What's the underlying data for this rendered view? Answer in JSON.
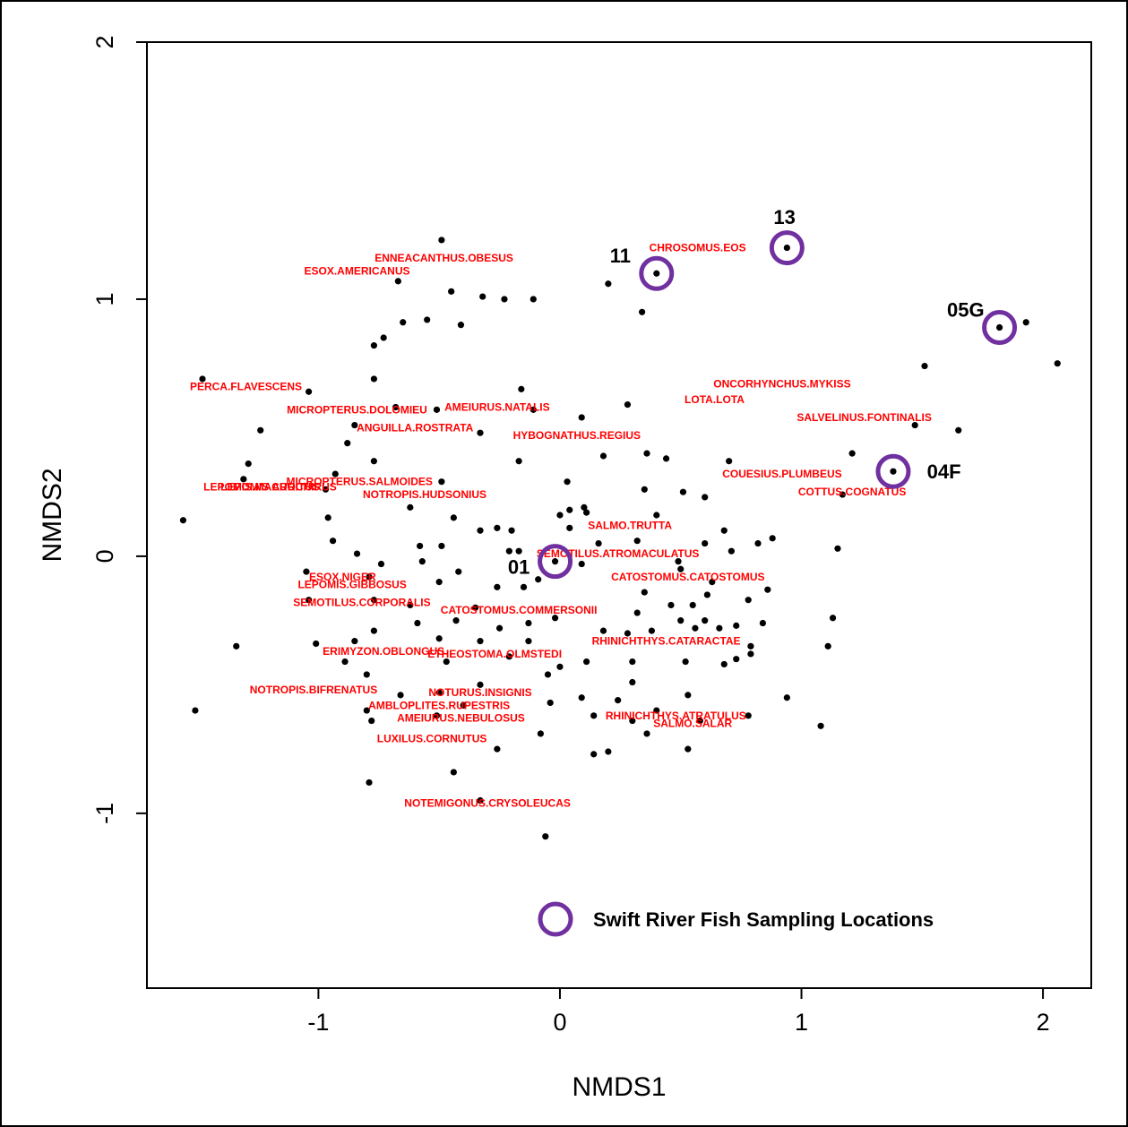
{
  "chart_data": {
    "type": "scatter",
    "xlabel": "NMDS1",
    "ylabel": "NMDS2",
    "xlim": [
      -1.71,
      2.2
    ],
    "ylim": [
      -1.68,
      2.0
    ],
    "x_ticks": [
      -1,
      0,
      1,
      2
    ],
    "y_ticks": [
      -1,
      0,
      1,
      2
    ],
    "x_tick_labels": [
      "-1",
      "0",
      "1",
      "2"
    ],
    "y_tick_labels": [
      "-1",
      "0",
      "1",
      "2"
    ],
    "grid": false,
    "colors": {
      "points": "#000000",
      "species_labels": "#ff0000",
      "site_circles": "#7030a0"
    },
    "points": [
      [
        -0.49,
        1.23
      ],
      [
        -0.67,
        1.07
      ],
      [
        -0.45,
        1.03
      ],
      [
        -0.32,
        1.01
      ],
      [
        -0.23,
        1.0
      ],
      [
        -0.11,
        1.0
      ],
      [
        -0.55,
        0.92
      ],
      [
        -0.65,
        0.91
      ],
      [
        -0.41,
        0.9
      ],
      [
        -0.73,
        0.85
      ],
      [
        -0.77,
        0.82
      ],
      [
        -1.48,
        0.69
      ],
      [
        -0.77,
        0.69
      ],
      [
        -1.04,
        0.64
      ],
      [
        -0.16,
        0.65
      ],
      [
        -0.68,
        0.58
      ],
      [
        -0.51,
        0.57
      ],
      [
        -0.11,
        0.57
      ],
      [
        0.09,
        0.54
      ],
      [
        0.28,
        0.59
      ],
      [
        -1.24,
        0.49
      ],
      [
        -0.85,
        0.51
      ],
      [
        -0.33,
        0.48
      ],
      [
        -0.88,
        0.44
      ],
      [
        0.18,
        0.39
      ],
      [
        0.36,
        0.4
      ],
      [
        0.44,
        0.38
      ],
      [
        -1.29,
        0.36
      ],
      [
        -0.77,
        0.37
      ],
      [
        -0.17,
        0.37
      ],
      [
        -0.93,
        0.32
      ],
      [
        -1.31,
        0.3
      ],
      [
        0.03,
        0.29
      ],
      [
        -0.49,
        0.29
      ],
      [
        0.35,
        0.26
      ],
      [
        0.51,
        0.25
      ],
      [
        0.6,
        0.23
      ],
      [
        0.7,
        0.37
      ],
      [
        0.04,
        0.18
      ],
      [
        0.1,
        0.19
      ],
      [
        0.4,
        0.16
      ],
      [
        -0.97,
        0.26
      ],
      [
        -0.62,
        0.19
      ],
      [
        0.11,
        0.17
      ],
      [
        -1.56,
        0.14
      ],
      [
        -0.96,
        0.15
      ],
      [
        -0.44,
        0.15
      ],
      [
        0.0,
        0.16
      ],
      [
        0.04,
        0.11
      ],
      [
        -0.2,
        0.1
      ],
      [
        -0.33,
        0.1
      ],
      [
        -0.26,
        0.11
      ],
      [
        0.68,
        0.1
      ],
      [
        0.16,
        0.05
      ],
      [
        0.32,
        0.06
      ],
      [
        0.6,
        0.05
      ],
      [
        -0.94,
        0.06
      ],
      [
        -0.58,
        0.04
      ],
      [
        -0.49,
        0.04
      ],
      [
        -0.21,
        0.02
      ],
      [
        -0.17,
        0.02
      ],
      [
        0.82,
        0.05
      ],
      [
        0.88,
        0.07
      ],
      [
        0.71,
        0.02
      ],
      [
        1.15,
        0.03
      ],
      [
        -0.84,
        0.01
      ],
      [
        -0.57,
        -0.02
      ],
      [
        -0.74,
        -0.03
      ],
      [
        -0.42,
        -0.06
      ],
      [
        0.09,
        -0.03
      ],
      [
        0.49,
        -0.02
      ],
      [
        0.5,
        -0.05
      ],
      [
        -1.05,
        -0.06
      ],
      [
        -0.79,
        -0.08
      ],
      [
        -0.5,
        -0.1
      ],
      [
        -0.09,
        -0.09
      ],
      [
        0.63,
        -0.1
      ],
      [
        -0.26,
        -0.12
      ],
      [
        -0.15,
        -0.12
      ],
      [
        0.35,
        -0.14
      ],
      [
        0.61,
        -0.15
      ],
      [
        0.86,
        -0.13
      ],
      [
        -1.04,
        -0.17
      ],
      [
        -0.77,
        -0.17
      ],
      [
        -0.62,
        -0.19
      ],
      [
        -0.35,
        -0.2
      ],
      [
        0.46,
        -0.19
      ],
      [
        0.55,
        -0.19
      ],
      [
        0.78,
        -0.17
      ],
      [
        -0.43,
        -0.25
      ],
      [
        -0.13,
        -0.26
      ],
      [
        -0.02,
        -0.24
      ],
      [
        0.32,
        -0.22
      ],
      [
        0.5,
        -0.25
      ],
      [
        0.6,
        -0.25
      ],
      [
        0.73,
        -0.27
      ],
      [
        0.84,
        -0.26
      ],
      [
        1.13,
        -0.24
      ],
      [
        -0.59,
        -0.26
      ],
      [
        -0.25,
        -0.28
      ],
      [
        0.18,
        -0.29
      ],
      [
        0.28,
        -0.3
      ],
      [
        0.38,
        -0.29
      ],
      [
        0.56,
        -0.28
      ],
      [
        0.66,
        -0.28
      ],
      [
        -1.34,
        -0.35
      ],
      [
        -1.01,
        -0.34
      ],
      [
        -0.85,
        -0.33
      ],
      [
        -0.77,
        -0.29
      ],
      [
        -0.5,
        -0.32
      ],
      [
        -0.33,
        -0.33
      ],
      [
        -0.13,
        -0.33
      ],
      [
        0.73,
        -0.4
      ],
      [
        0.79,
        -0.35
      ],
      [
        1.11,
        -0.35
      ],
      [
        -0.89,
        -0.41
      ],
      [
        -0.21,
        -0.39
      ],
      [
        0.11,
        -0.41
      ],
      [
        -0.47,
        -0.41
      ],
      [
        -0.05,
        -0.46
      ],
      [
        0.0,
        -0.43
      ],
      [
        0.3,
        -0.41
      ],
      [
        0.52,
        -0.41
      ],
      [
        0.68,
        -0.42
      ],
      [
        0.79,
        -0.38
      ],
      [
        -0.8,
        -0.46
      ],
      [
        -0.33,
        -0.5
      ],
      [
        -0.5,
        -0.53
      ],
      [
        0.3,
        -0.49
      ],
      [
        -1.51,
        -0.6
      ],
      [
        -0.8,
        -0.6
      ],
      [
        -0.78,
        -0.64
      ],
      [
        -0.51,
        -0.62
      ],
      [
        -0.4,
        -0.58
      ],
      [
        -0.04,
        -0.57
      ],
      [
        0.09,
        -0.55
      ],
      [
        0.24,
        -0.56
      ],
      [
        0.53,
        -0.54
      ],
      [
        0.94,
        -0.55
      ],
      [
        -0.66,
        -0.54
      ],
      [
        0.14,
        -0.62
      ],
      [
        0.4,
        -0.6
      ],
      [
        0.3,
        -0.64
      ],
      [
        0.58,
        -0.64
      ],
      [
        0.78,
        -0.62
      ],
      [
        1.08,
        -0.66
      ],
      [
        -0.08,
        -0.69
      ],
      [
        0.36,
        -0.69
      ],
      [
        -0.26,
        -0.75
      ],
      [
        0.14,
        -0.77
      ],
      [
        0.2,
        -0.76
      ],
      [
        0.53,
        -0.75
      ],
      [
        -0.44,
        -0.84
      ],
      [
        -0.79,
        -0.88
      ],
      [
        -0.33,
        -0.95
      ],
      [
        -0.06,
        -1.09
      ],
      [
        0.2,
        1.06
      ],
      [
        0.34,
        0.95
      ],
      [
        0.4,
        1.1
      ],
      [
        0.94,
        1.2
      ],
      [
        1.82,
        0.89
      ],
      [
        1.93,
        0.91
      ],
      [
        2.06,
        0.75
      ],
      [
        1.51,
        0.74
      ],
      [
        1.47,
        0.51
      ],
      [
        1.65,
        0.49
      ],
      [
        1.21,
        0.4
      ],
      [
        1.38,
        0.33
      ],
      [
        1.17,
        0.24
      ],
      [
        -0.02,
        -0.02
      ]
    ],
    "species_labels": [
      {
        "text": "ENNEACANTHUS.OBESUS",
        "x": -0.48,
        "y": 1.16
      },
      {
        "text": "ESOX.AMERICANUS",
        "x": -0.84,
        "y": 1.11
      },
      {
        "text": "CHROSOMUS.EOS",
        "x": 0.57,
        "y": 1.2
      },
      {
        "text": "PERCA.FLAVESCENS",
        "x": -1.3,
        "y": 0.66
      },
      {
        "text": "ONCORHYNCHUS.MYKISS",
        "x": 0.92,
        "y": 0.67
      },
      {
        "text": "LOTA.LOTA",
        "x": 0.64,
        "y": 0.61
      },
      {
        "text": "MICROPTERUS.DOLOMIEU",
        "x": -0.84,
        "y": 0.57
      },
      {
        "text": "AMEIURUS.NATALIS",
        "x": -0.26,
        "y": 0.58
      },
      {
        "text": "SALVELINUS.FONTINALIS",
        "x": 1.26,
        "y": 0.54
      },
      {
        "text": "ANGUILLA.ROSTRATA",
        "x": -0.6,
        "y": 0.5
      },
      {
        "text": "HYBOGNATHUS.REGIUS",
        "x": 0.07,
        "y": 0.47
      },
      {
        "text": "COUESIUS.PLUMBEUS",
        "x": 0.92,
        "y": 0.32
      },
      {
        "text": "COTTUS.COGNATUS",
        "x": 1.21,
        "y": 0.25
      },
      {
        "text": "MICROPTERUS.SALMOIDES",
        "x": -0.83,
        "y": 0.29
      },
      {
        "text": "LEPOMIS.AURITUS",
        "x": -1.2,
        "y": 0.27
      },
      {
        "text": "LEPOMIS.MACROCHIRUS",
        "x": -1.2,
        "y": 0.27
      },
      {
        "text": "NOTROPIS.HUDSONIUS",
        "x": -0.56,
        "y": 0.24
      },
      {
        "text": "SALMO.TRUTTA",
        "x": 0.29,
        "y": 0.12
      },
      {
        "text": "SEMOTILUS.ATROMACULATUS",
        "x": 0.24,
        "y": 0.01
      },
      {
        "text": "CATOSTOMUS.CATOSTOMUS",
        "x": 0.53,
        "y": -0.08
      },
      {
        "text": "ESOX.NIGER",
        "x": -0.9,
        "y": -0.08
      },
      {
        "text": "LEPOMIS.GIBBOSUS",
        "x": -0.86,
        "y": -0.11
      },
      {
        "text": "SEMOTILUS.CORPORALIS",
        "x": -0.82,
        "y": -0.18
      },
      {
        "text": "CATOSTOMUS.COMMERSONII",
        "x": -0.17,
        "y": -0.21
      },
      {
        "text": "RHINICHTHYS.CATARACTAE",
        "x": 0.44,
        "y": -0.33
      },
      {
        "text": "ERIMYZON.OBLONGUS",
        "x": -0.73,
        "y": -0.37
      },
      {
        "text": "ETHEOSTOMA.OLMSTEDI",
        "x": -0.27,
        "y": -0.38
      },
      {
        "text": "NOTROPIS.BIFRENATUS",
        "x": -1.02,
        "y": -0.52
      },
      {
        "text": "NOTURUS.INSIGNIS",
        "x": -0.33,
        "y": -0.53
      },
      {
        "text": "AMBLOPLITES.RUPESTRIS",
        "x": -0.5,
        "y": -0.58
      },
      {
        "text": "AMEIURUS.NEBULOSUS",
        "x": -0.41,
        "y": -0.63
      },
      {
        "text": "RHINICHTHYS.ATRATULUS",
        "x": 0.48,
        "y": -0.62
      },
      {
        "text": "SALMO.SALAR",
        "x": 0.55,
        "y": -0.65
      },
      {
        "text": "LUXILUS.CORNUTUS",
        "x": -0.53,
        "y": -0.71
      },
      {
        "text": "NOTEMIGONUS.CRYSOLEUCAS",
        "x": -0.3,
        "y": -0.96
      }
    ],
    "sites": [
      {
        "label": "11",
        "x": 0.4,
        "y": 1.1,
        "label_dx": -0.15,
        "label_dy": 0.07
      },
      {
        "label": "13",
        "x": 0.94,
        "y": 1.2,
        "label_dx": -0.01,
        "label_dy": 0.12
      },
      {
        "label": "05G",
        "x": 1.82,
        "y": 0.89,
        "label_dx": -0.14,
        "label_dy": 0.07
      },
      {
        "label": "04F",
        "x": 1.38,
        "y": 0.33,
        "label_dx": 0.21,
        "label_dy": 0.0
      },
      {
        "label": "01",
        "x": -0.02,
        "y": -0.02,
        "label_dx": -0.15,
        "label_dy": -0.02
      }
    ],
    "legend": {
      "label": "Swift River Fish Sampling Locations",
      "placement": "bottom-center"
    }
  }
}
